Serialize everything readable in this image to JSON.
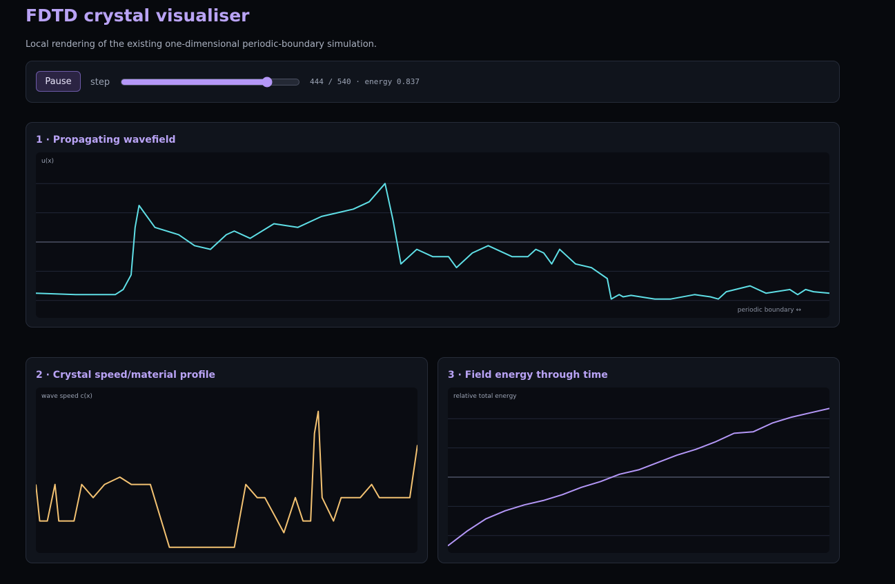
{
  "header": {
    "title": "FDTD crystal visualiser",
    "subtitle": "Local rendering of the existing one-dimensional periodic-boundary simulation."
  },
  "controls": {
    "pause_label": "Pause",
    "step_label": "step",
    "step_value": 444,
    "step_max": 540,
    "readout": "444 / 540 · energy 0.837"
  },
  "panels": {
    "wavefield": {
      "title": "1 · Propagating wavefield",
      "ylabel": "u(x)",
      "annotation": "periodic boundary ↔"
    },
    "speed": {
      "title": "2 · Crystal speed/material profile",
      "ylabel": "wave speed c(x)"
    },
    "energy": {
      "title": "3 · Field energy through time",
      "ylabel": "relative total energy"
    }
  },
  "colors": {
    "wave": "#5fdfe6",
    "speed": "#f3c272",
    "energy": "#b497f7",
    "grid": "#222738",
    "zero_line": "#4d5264",
    "accent": "#b9a3f5"
  },
  "chart_data": [
    {
      "type": "line",
      "title": "1 · Propagating wavefield",
      "ylabel": "u(x)",
      "grid": true,
      "ylim": [
        -1,
        1
      ],
      "x": [
        0,
        0.05,
        0.1,
        0.11,
        0.12,
        0.125,
        0.13,
        0.15,
        0.18,
        0.2,
        0.22,
        0.24,
        0.25,
        0.27,
        0.3,
        0.33,
        0.36,
        0.38,
        0.4,
        0.42,
        0.44,
        0.45,
        0.46,
        0.47,
        0.48,
        0.5,
        0.52,
        0.53,
        0.55,
        0.57,
        0.6,
        0.62,
        0.63,
        0.64,
        0.65,
        0.66,
        0.67,
        0.68,
        0.7,
        0.72,
        0.725,
        0.73,
        0.735,
        0.74,
        0.75,
        0.78,
        0.8,
        0.83,
        0.85,
        0.86,
        0.87,
        0.9,
        0.92,
        0.95,
        0.96,
        0.97,
        0.98,
        1.0
      ],
      "y": [
        -0.7,
        -0.72,
        -0.72,
        -0.65,
        -0.45,
        0.2,
        0.5,
        0.2,
        0.1,
        -0.05,
        -0.1,
        0.1,
        0.15,
        0.05,
        0.25,
        0.2,
        0.35,
        0.4,
        0.45,
        0.55,
        0.8,
        0.3,
        -0.3,
        -0.2,
        -0.1,
        -0.2,
        -0.2,
        -0.35,
        -0.15,
        -0.05,
        -0.2,
        -0.2,
        -0.1,
        -0.15,
        -0.3,
        -0.1,
        -0.2,
        -0.3,
        -0.35,
        -0.5,
        -0.78,
        -0.75,
        -0.72,
        -0.75,
        -0.73,
        -0.78,
        -0.78,
        -0.72,
        -0.75,
        -0.78,
        -0.68,
        -0.6,
        -0.7,
        -0.65,
        -0.72,
        -0.65,
        -0.68,
        -0.7
      ]
    },
    {
      "type": "line",
      "title": "2 · Crystal speed/material profile",
      "ylabel": "wave speed c(x)",
      "grid": false,
      "ylim": [
        0,
        1
      ],
      "x": [
        0,
        0.01,
        0.03,
        0.05,
        0.06,
        0.1,
        0.12,
        0.15,
        0.18,
        0.22,
        0.25,
        0.28,
        0.3,
        0.35,
        0.38,
        0.4,
        0.42,
        0.45,
        0.48,
        0.5,
        0.52,
        0.55,
        0.58,
        0.6,
        0.65,
        0.68,
        0.7,
        0.72,
        0.73,
        0.74,
        0.75,
        0.78,
        0.8,
        0.85,
        0.88,
        0.9,
        0.95,
        0.98,
        1.0
      ],
      "y": [
        0.45,
        0.2,
        0.2,
        0.45,
        0.2,
        0.2,
        0.45,
        0.36,
        0.45,
        0.5,
        0.45,
        0.45,
        0.45,
        0.02,
        0.02,
        0.02,
        0.02,
        0.02,
        0.02,
        0.02,
        0.02,
        0.45,
        0.36,
        0.36,
        0.12,
        0.36,
        0.2,
        0.2,
        0.8,
        0.95,
        0.36,
        0.2,
        0.36,
        0.36,
        0.45,
        0.36,
        0.36,
        0.36,
        0.72
      ]
    },
    {
      "type": "line",
      "title": "3 · Field energy through time",
      "ylabel": "relative total energy",
      "grid": true,
      "ylim": [
        -1,
        1
      ],
      "x": [
        0,
        0.05,
        0.1,
        0.15,
        0.2,
        0.25,
        0.3,
        0.35,
        0.4,
        0.45,
        0.5,
        0.55,
        0.6,
        0.65,
        0.7,
        0.75,
        0.8,
        0.85,
        0.9,
        0.95,
        1.0
      ],
      "y": [
        -0.94,
        -0.74,
        -0.57,
        -0.46,
        -0.38,
        -0.32,
        -0.24,
        -0.14,
        -0.06,
        0.04,
        0.1,
        0.2,
        0.3,
        0.38,
        0.48,
        0.6,
        0.62,
        0.74,
        0.82,
        0.88,
        0.94
      ]
    }
  ]
}
